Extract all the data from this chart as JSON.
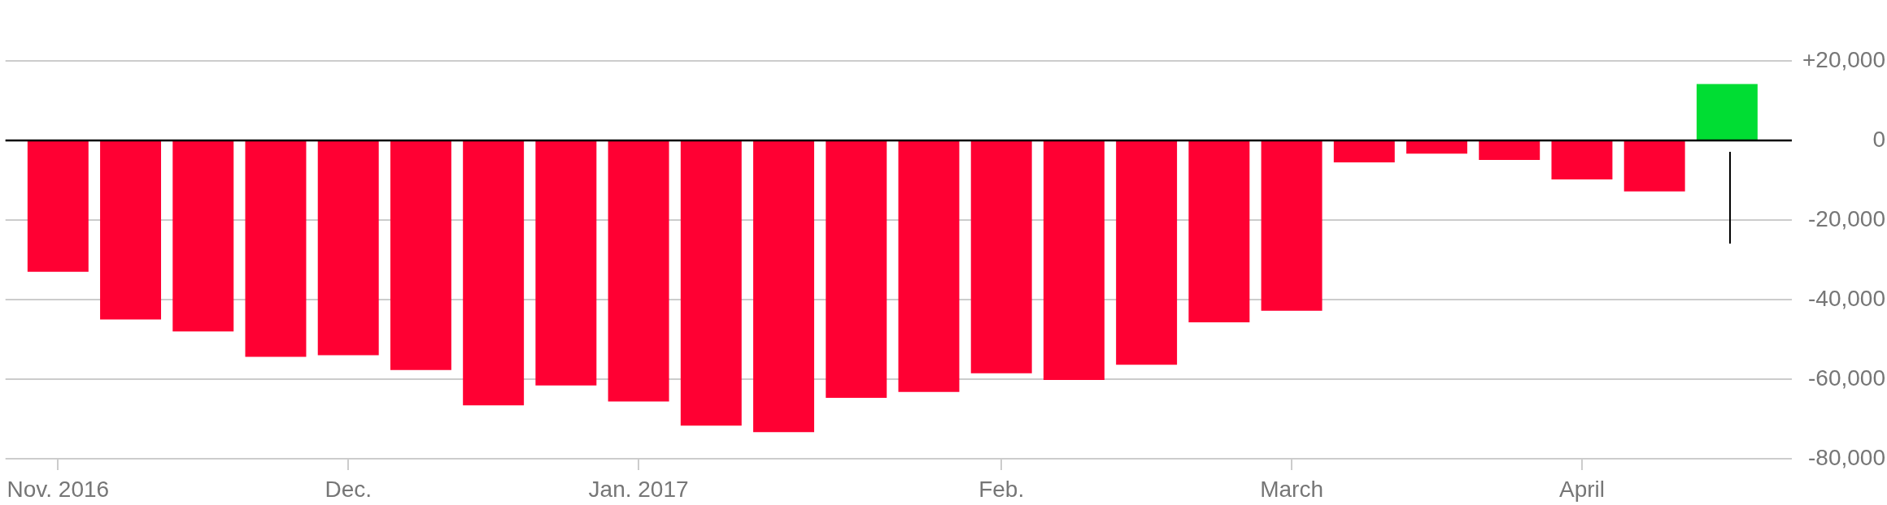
{
  "chart_data": {
    "type": "bar",
    "categories": [
      "Nov. 2016",
      null,
      null,
      null,
      "Dec.",
      null,
      null,
      null,
      "Jan. 2017",
      null,
      null,
      null,
      null,
      "Feb.",
      null,
      null,
      null,
      "March",
      null,
      null,
      null,
      "April",
      null,
      null
    ],
    "values": [
      -33000,
      -45000,
      -48000,
      -54400,
      -54000,
      -57700,
      -66600,
      -61600,
      -65600,
      -71700,
      -73300,
      -64700,
      -63200,
      -58500,
      -60200,
      -56400,
      -45700,
      -42800,
      -5500,
      -3300,
      -4900,
      -9800,
      -12800,
      14200
    ],
    "colors": [
      "#ff0033",
      "#ff0033",
      "#ff0033",
      "#ff0033",
      "#ff0033",
      "#ff0033",
      "#ff0033",
      "#ff0033",
      "#ff0033",
      "#ff0033",
      "#ff0033",
      "#ff0033",
      "#ff0033",
      "#ff0033",
      "#ff0033",
      "#ff0033",
      "#ff0033",
      "#ff0033",
      "#ff0033",
      "#ff0033",
      "#ff0033",
      "#ff0033",
      "#ff0033",
      "#00dd33"
    ],
    "ylim": [
      -80000,
      20000
    ],
    "yticks": [
      {
        "value": 20000,
        "label": "+20,000"
      },
      0,
      {
        "value": -20000,
        "label": "-20,000"
      },
      {
        "value": -40000,
        "label": "-40,000"
      },
      {
        "value": -60000,
        "label": "-60,000"
      },
      {
        "value": -80000,
        "label": "-80,000"
      }
    ],
    "grid": "y",
    "legend": false,
    "ref_lines": [
      {
        "axis": "y",
        "value": 0,
        "color": "#000000"
      }
    ]
  }
}
